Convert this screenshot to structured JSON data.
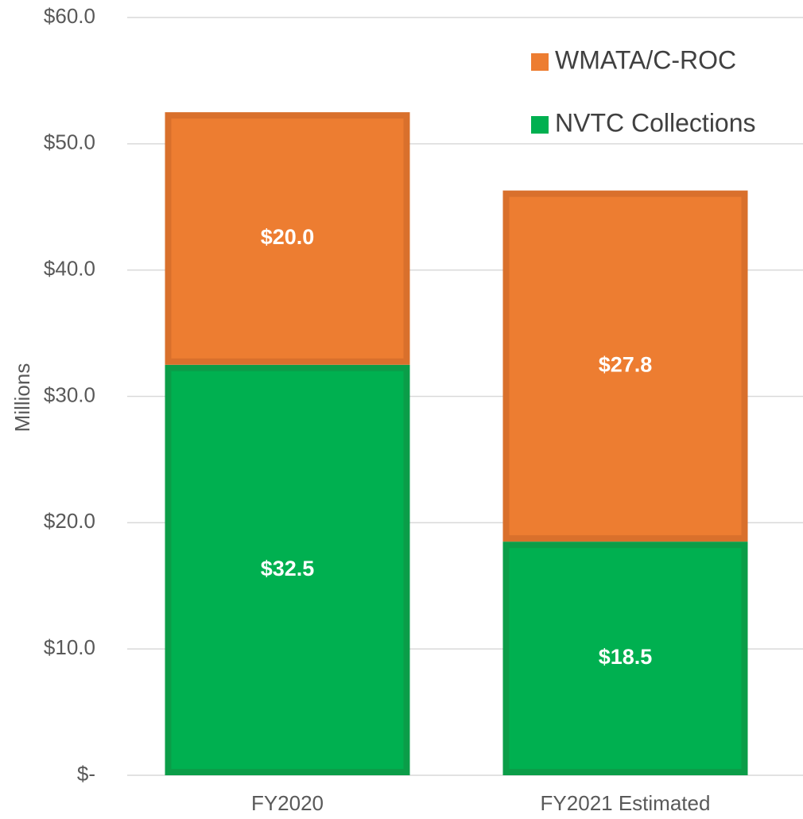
{
  "chart_data": {
    "type": "bar",
    "stacked": true,
    "y_label": "Millions",
    "categories": [
      "FY2020",
      "FY2021 Estimated"
    ],
    "series": [
      {
        "name": "NVTC Collections",
        "color": "#00b050",
        "border_color": "#0b9d48",
        "values": [
          32.5,
          18.5
        ],
        "value_labels": [
          "$32.5",
          "$18.5"
        ]
      },
      {
        "name": "WMATA/C-ROC",
        "color": "#ed7d31",
        "border_color": "#d9702c",
        "values": [
          20.0,
          27.8
        ],
        "value_labels": [
          "$20.0",
          "$27.8"
        ]
      }
    ],
    "ylim": [
      0,
      60
    ],
    "yticks": [
      {
        "value": 0,
        "label": "$-"
      },
      {
        "value": 10,
        "label": "$10.0"
      },
      {
        "value": 20,
        "label": "$20.0"
      },
      {
        "value": 30,
        "label": "$30.0"
      },
      {
        "value": 40,
        "label": "$40.0"
      },
      {
        "value": 50,
        "label": "$50.0"
      },
      {
        "value": 60,
        "label": "$60.0"
      }
    ],
    "grid": true,
    "legend": "top-right"
  }
}
